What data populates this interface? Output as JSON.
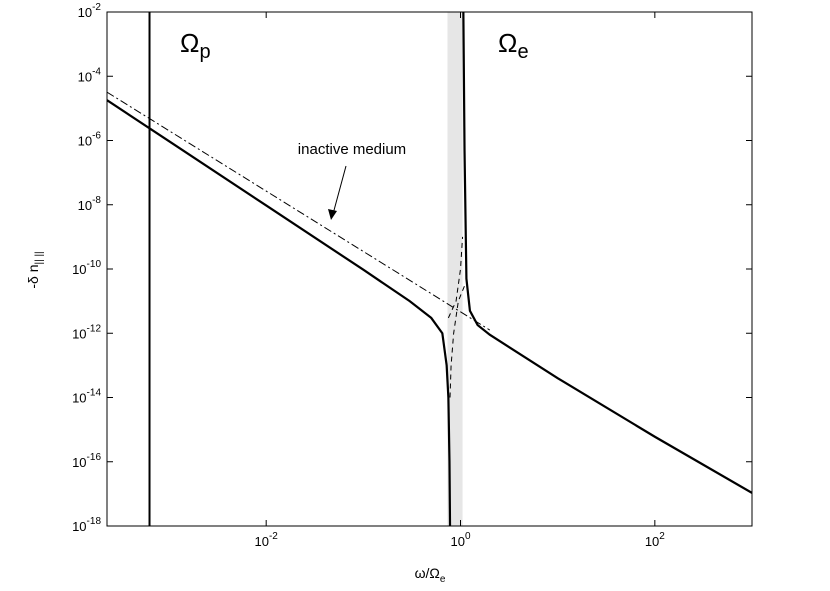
{
  "chart_data": {
    "type": "line",
    "xlabel": "ω/Ω",
    "xlabel_subscript": "e",
    "ylabel": "-δ n",
    "ylabel_subscript": "|| ||",
    "log_x": true,
    "log_y": true,
    "xlim": [
      0.00023,
      1000
    ],
    "ylim": [
      1e-18,
      0.01
    ],
    "xticks": [
      {
        "value": 0.01,
        "label": "10^-2"
      },
      {
        "value": 1,
        "label": "10^0"
      },
      {
        "value": 100,
        "label": "10^2"
      }
    ],
    "yticks": [
      {
        "value": 1e-18,
        "label": "10^-18"
      },
      {
        "value": 1e-16,
        "label": "10^-16"
      },
      {
        "value": 1e-14,
        "label": "10^-14"
      },
      {
        "value": 1e-12,
        "label": "10^-12"
      },
      {
        "value": 1e-10,
        "label": "10^-10"
      },
      {
        "value": 1e-08,
        "label": "10^-8"
      },
      {
        "value": 1e-06,
        "label": "10^-6"
      },
      {
        "value": 0.0001,
        "label": "10^-4"
      },
      {
        "value": 0.01,
        "label": "10^-2"
      }
    ],
    "vline_x": 0.00063,
    "band": [
      0.735,
      1.05
    ],
    "band_color": "#e6e6e6",
    "series": [
      {
        "style": "solid",
        "color": "#000000",
        "x": [
          0.00023,
          0.001,
          0.01,
          0.1,
          0.3,
          0.5,
          0.65,
          0.72,
          0.75,
          0.77,
          0.78,
          1.0,
          1.07,
          1.1,
          1.15,
          1.25,
          1.5,
          2,
          10,
          100,
          1000
        ],
        "values": [
          1.8e-05,
          9.5e-07,
          9.5e-09,
          9.5e-11,
          1e-11,
          3e-12,
          1e-12,
          1e-13,
          1e-14,
          1e-16,
          1e-18,
          null,
          0.01,
          5e-07,
          5e-11,
          5e-12,
          1.8e-12,
          9e-13,
          4e-14,
          6e-16,
          1.07e-17
        ]
      },
      {
        "style": "dashdot",
        "color": "#000000",
        "x": [
          0.00023,
          2
        ],
        "values": [
          3.2e-05,
          1.26e-12
        ]
      },
      {
        "style": "dashed",
        "color": "#000000",
        "x": [
          0.78,
          0.8,
          0.85,
          0.95,
          1.1
        ],
        "values": [
          1e-14,
          1e-13,
          1e-12,
          1e-11,
          3e-11
        ]
      },
      {
        "style": "dashed",
        "color": "#000000",
        "x": [
          0.75,
          0.9,
          1.0,
          1.05
        ],
        "values": [
          3e-12,
          1e-11,
          1e-10,
          1e-09
        ]
      }
    ],
    "annotations": [
      {
        "text": "Ω",
        "subscript": "p"
      },
      {
        "text": "Ω",
        "subscript": "e"
      },
      {
        "text": "inactive medium"
      }
    ]
  }
}
